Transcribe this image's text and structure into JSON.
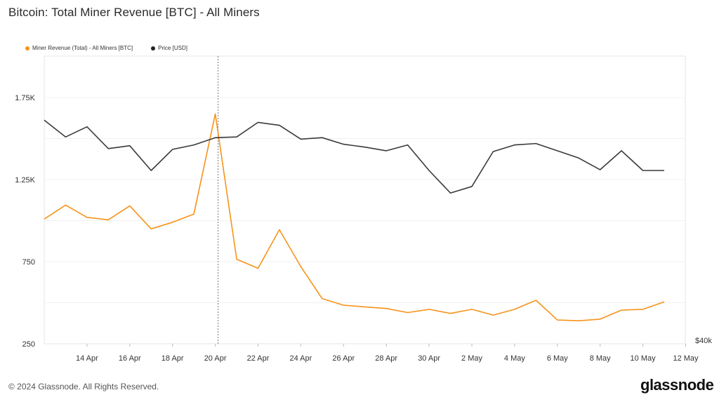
{
  "title": "Bitcoin: Total Miner Revenue [BTC] - All Miners",
  "legend": [
    {
      "label": "Miner Revenue (Total) - All Miners [BTC]",
      "color": "#f7931a"
    },
    {
      "label": "Price [USD]",
      "color": "#222222"
    }
  ],
  "footer": {
    "copyright": "© 2024 Glassnode. All Rights Reserved.",
    "brand": "glassnode"
  },
  "chart_data": {
    "type": "line",
    "x": [
      "12 Apr",
      "13 Apr",
      "14 Apr",
      "15 Apr",
      "16 Apr",
      "17 Apr",
      "18 Apr",
      "19 Apr",
      "20 Apr",
      "21 Apr",
      "22 Apr",
      "23 Apr",
      "24 Apr",
      "25 Apr",
      "26 Apr",
      "27 Apr",
      "28 Apr",
      "29 Apr",
      "30 Apr",
      "1 May",
      "2 May",
      "3 May",
      "4 May",
      "5 May",
      "6 May",
      "7 May",
      "8 May",
      "9 May",
      "10 May",
      "11 May"
    ],
    "x_tick_labels": [
      "14 Apr",
      "16 Apr",
      "18 Apr",
      "20 Apr",
      "22 Apr",
      "24 Apr",
      "26 Apr",
      "28 Apr",
      "30 Apr",
      "2 May",
      "4 May",
      "6 May",
      "8 May",
      "10 May",
      "12 May"
    ],
    "y_left": {
      "ticks": [
        "250",
        "750",
        "1.25K",
        "1.75K"
      ],
      "tick_values": [
        250,
        750,
        1250,
        1750
      ],
      "range": [
        250,
        1810
      ]
    },
    "y_right": {
      "ticks": [
        "$40k"
      ]
    },
    "series": [
      {
        "name": "Miner Revenue (Total) - All Miners [BTC]",
        "axis": "left",
        "color": "#f7931a",
        "values": [
          1010,
          1095,
          1020,
          1005,
          1090,
          950,
          990,
          1040,
          1650,
          765,
          710,
          945,
          720,
          525,
          485,
          475,
          465,
          440,
          460,
          435,
          460,
          425,
          460,
          515,
          395,
          390,
          400,
          455,
          460,
          505
        ]
      },
      {
        "name": "Price [USD]",
        "axis": "right",
        "color": "#3a3a3a",
        "values": [
          70700,
          68400,
          69800,
          66800,
          67200,
          63800,
          66700,
          67300,
          68300,
          68400,
          70400,
          70000,
          68100,
          68300,
          67400,
          67000,
          66500,
          67300,
          63800,
          60700,
          61600,
          66400,
          67300,
          67500,
          66500,
          65500,
          63900,
          66500,
          63800,
          63800
        ]
      }
    ],
    "event_marker": {
      "x": "20 Apr"
    },
    "grid": true
  }
}
